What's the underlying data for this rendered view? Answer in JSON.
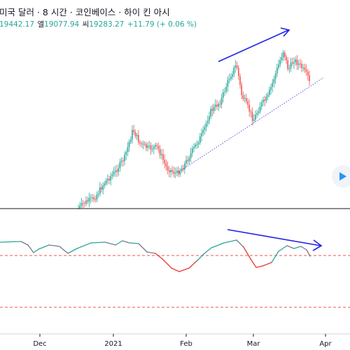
{
  "header": {
    "title": "미국 달러 · 8 시간 · 코인베이스 · 하이 킨 아시",
    "ohlc": {
      "open_value": "19442.17",
      "high_label": "엘",
      "high_value": "19077.94",
      "low_label": "씨",
      "low_value": "19283.27",
      "change": "+11.79 (+ 0.06 %)"
    }
  },
  "time_axis": {
    "ticks": [
      "Dec",
      "2021",
      "Feb",
      "Mar",
      "Apr"
    ]
  },
  "colors": {
    "bull": "#26a69a",
    "bear": "#ef5350",
    "trend_arrow": "#1e22e6",
    "support_line": "#5b5bd6",
    "oscillator_up": "#26a69a",
    "oscillator_down": "#e53935",
    "oscillator_neutral": "#787b86",
    "threshold": "#ef5350"
  },
  "play_button": {
    "icon": "play-triangle-icon"
  }
}
